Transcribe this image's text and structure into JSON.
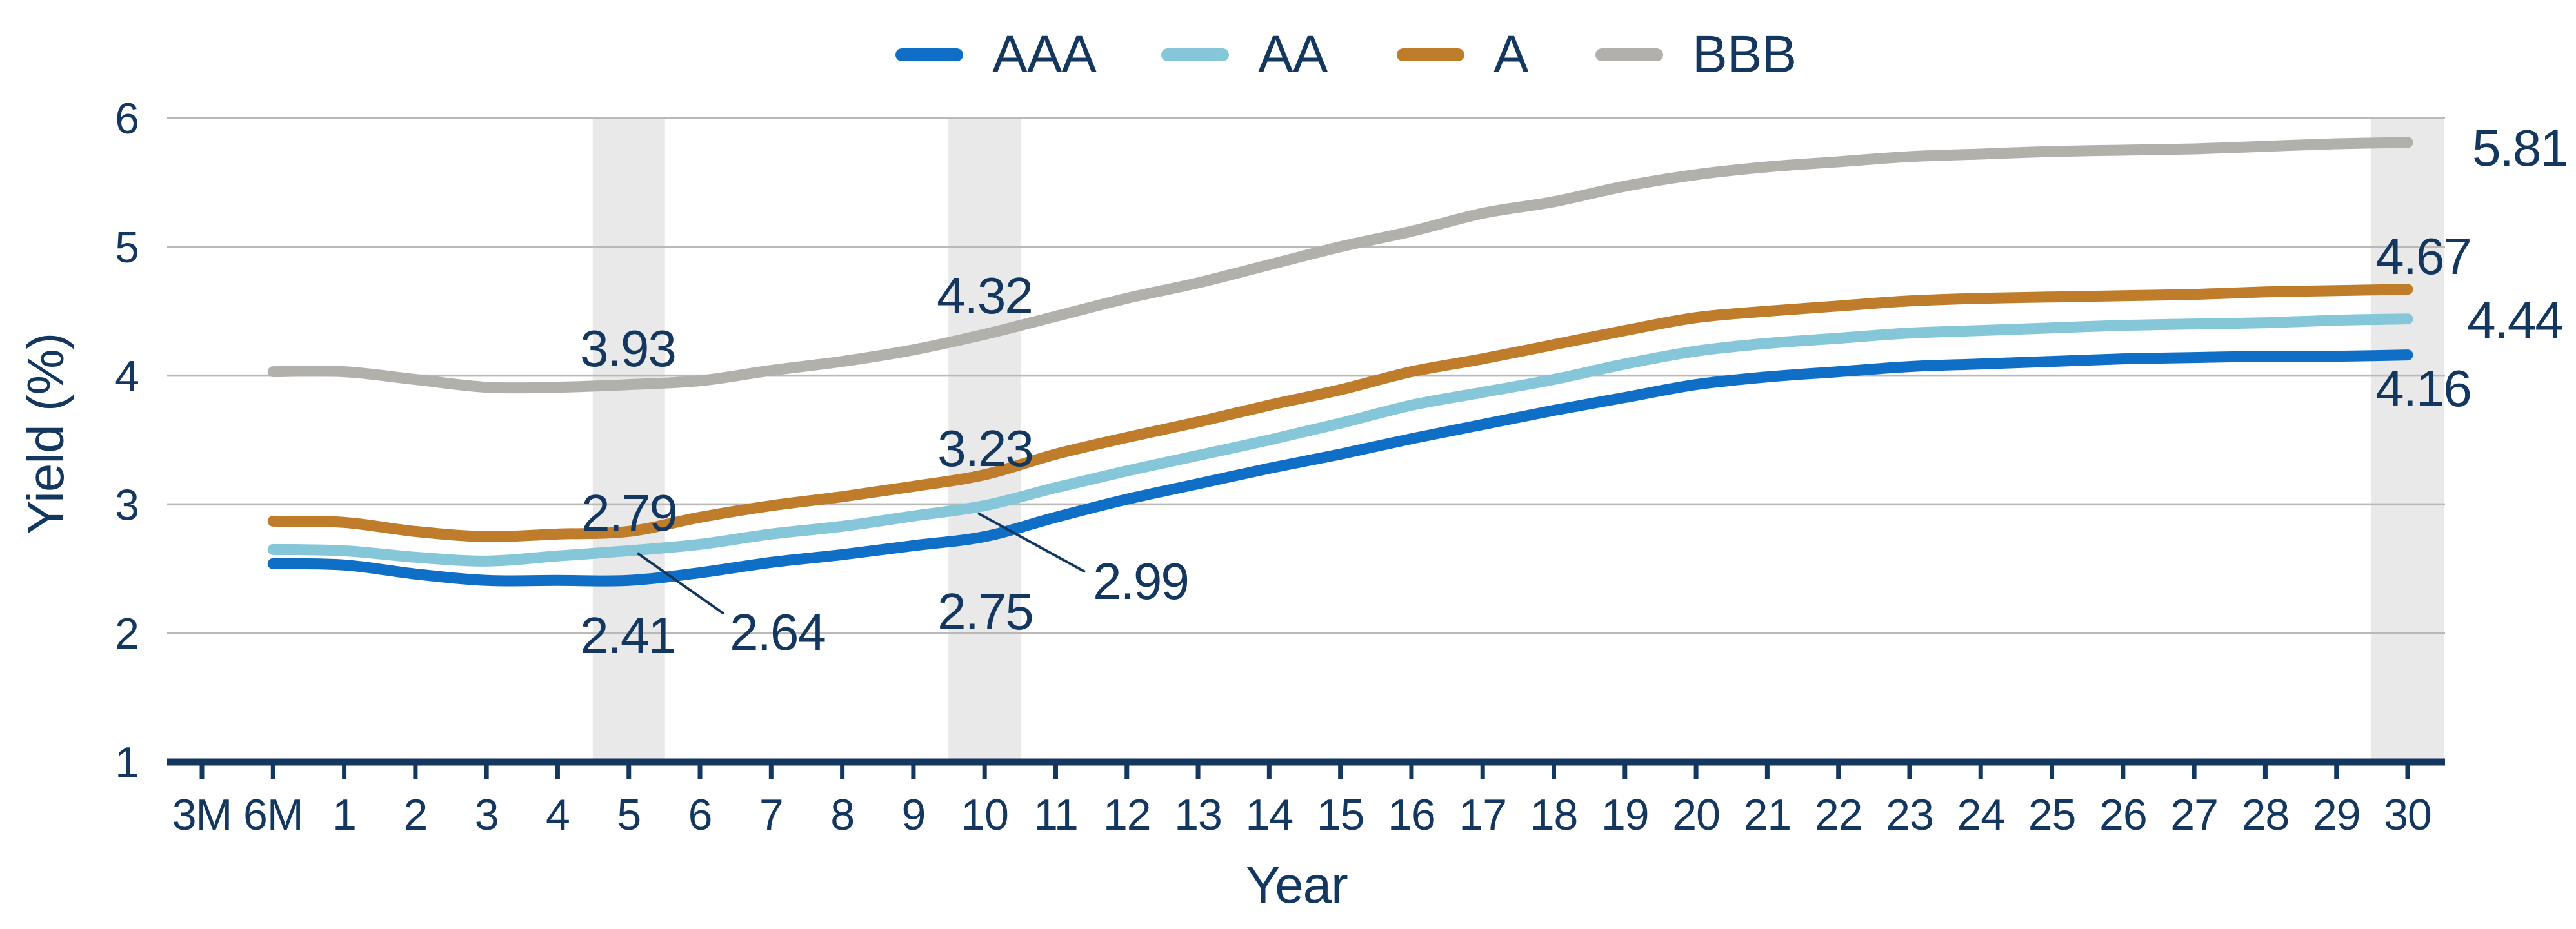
{
  "chart_data": {
    "type": "line",
    "x_axis": {
      "label": "Year"
    },
    "y_axis": {
      "label": "Yield (%)",
      "min": 1,
      "max": 6,
      "ticks": [
        6,
        5,
        4,
        3,
        2,
        1
      ]
    },
    "grid": "horizontal",
    "legend_position": "top",
    "categories": [
      "3M",
      "6M",
      "1",
      "2",
      "3",
      "4",
      "5",
      "6",
      "7",
      "8",
      "9",
      "10",
      "11",
      "12",
      "13",
      "14",
      "15",
      "16",
      "17",
      "18",
      "19",
      "20",
      "21",
      "22",
      "23",
      "24",
      "25",
      "26",
      "27",
      "28",
      "29",
      "30"
    ],
    "series": [
      {
        "name": "AAA",
        "color": "#0f6fc6",
        "values": [
          null,
          2.54,
          2.53,
          2.46,
          2.41,
          2.41,
          2.41,
          2.47,
          2.55,
          2.61,
          2.68,
          2.75,
          2.9,
          3.04,
          3.16,
          3.28,
          3.39,
          3.51,
          3.62,
          3.73,
          3.83,
          3.93,
          3.99,
          4.03,
          4.07,
          4.09,
          4.11,
          4.13,
          4.14,
          4.15,
          4.15,
          4.16
        ]
      },
      {
        "name": "AA",
        "color": "#85c7d9",
        "values": [
          null,
          2.65,
          2.64,
          2.59,
          2.56,
          2.6,
          2.64,
          2.69,
          2.77,
          2.83,
          2.91,
          2.99,
          3.13,
          3.26,
          3.38,
          3.5,
          3.63,
          3.77,
          3.87,
          3.97,
          4.09,
          4.19,
          4.25,
          4.29,
          4.33,
          4.35,
          4.37,
          4.39,
          4.4,
          4.41,
          4.43,
          4.44
        ]
      },
      {
        "name": "A",
        "color": "#bf7c2b",
        "values": [
          null,
          2.87,
          2.86,
          2.79,
          2.75,
          2.77,
          2.79,
          2.9,
          2.99,
          3.06,
          3.14,
          3.23,
          3.39,
          3.52,
          3.64,
          3.77,
          3.89,
          4.03,
          4.13,
          4.24,
          4.35,
          4.45,
          4.5,
          4.54,
          4.58,
          4.6,
          4.61,
          4.62,
          4.63,
          4.65,
          4.66,
          4.67
        ]
      },
      {
        "name": "BBB",
        "color": "#b2b0aa",
        "values": [
          null,
          4.03,
          4.03,
          3.97,
          3.91,
          3.91,
          3.93,
          3.96,
          4.04,
          4.11,
          4.2,
          4.32,
          4.46,
          4.6,
          4.72,
          4.86,
          5.0,
          5.12,
          5.26,
          5.35,
          5.47,
          5.56,
          5.62,
          5.66,
          5.7,
          5.72,
          5.74,
          5.75,
          5.76,
          5.78,
          5.8,
          5.81
        ]
      }
    ],
    "legend": [
      {
        "label": "AAA",
        "color": "#0f6fc6"
      },
      {
        "label": "AA",
        "color": "#85c7d9"
      },
      {
        "label": "A",
        "color": "#bf7c2b"
      },
      {
        "label": "BBB",
        "color": "#b2b0aa"
      }
    ],
    "highlight_bands": {
      "categories": [
        "5",
        "10",
        "30"
      ],
      "color": "#e9e9e9"
    },
    "annotations": [
      {
        "id": "bbb-5",
        "series": "BBB",
        "category": "5",
        "text": "3.93"
      },
      {
        "id": "a-5",
        "series": "A",
        "category": "5",
        "text": "2.79"
      },
      {
        "id": "aa-5",
        "series": "AA",
        "category": "5",
        "text": "2.64",
        "leader": true
      },
      {
        "id": "aaa-5",
        "series": "AAA",
        "category": "5",
        "text": "2.41"
      },
      {
        "id": "bbb-10",
        "series": "BBB",
        "category": "10",
        "text": "4.32"
      },
      {
        "id": "a-10",
        "series": "A",
        "category": "10",
        "text": "3.23"
      },
      {
        "id": "aa-10",
        "series": "AA",
        "category": "10",
        "text": "2.99",
        "leader": true
      },
      {
        "id": "aaa-10",
        "series": "AAA",
        "category": "10",
        "text": "2.75"
      },
      {
        "id": "bbb-30",
        "series": "BBB",
        "category": "30",
        "text": "5.81"
      },
      {
        "id": "a-30",
        "series": "A",
        "category": "30",
        "text": "4.67"
      },
      {
        "id": "aa-30",
        "series": "AA",
        "category": "30",
        "text": "4.44"
      },
      {
        "id": "aaa-30",
        "series": "AAA",
        "category": "30",
        "text": "4.16"
      }
    ],
    "colors": {
      "axis": "#14375f",
      "text": "#14375f",
      "gridline": "#b9b9b9",
      "band": "#e9e9e9"
    }
  }
}
